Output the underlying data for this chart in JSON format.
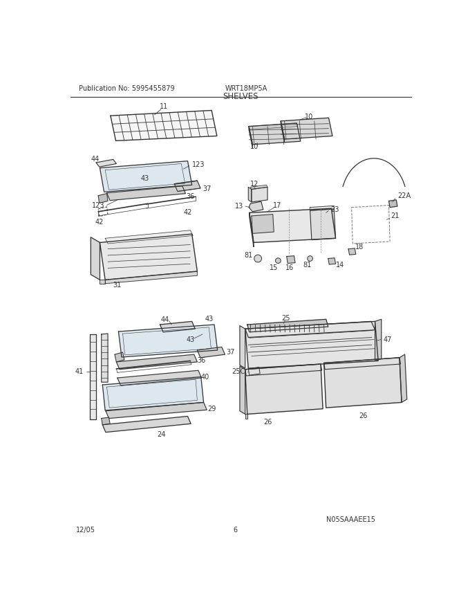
{
  "title": "SHELVES",
  "header_left": "Publication No: 5995455879",
  "header_center": "WRT18MP5A",
  "footer_left": "12/05",
  "footer_center": "6",
  "footer_right": "N05SAAAEE15",
  "bg_color": "#ffffff",
  "line_color": "#333333",
  "text_color": "#333333",
  "fig_width": 6.8,
  "fig_height": 8.8,
  "dpi": 100
}
